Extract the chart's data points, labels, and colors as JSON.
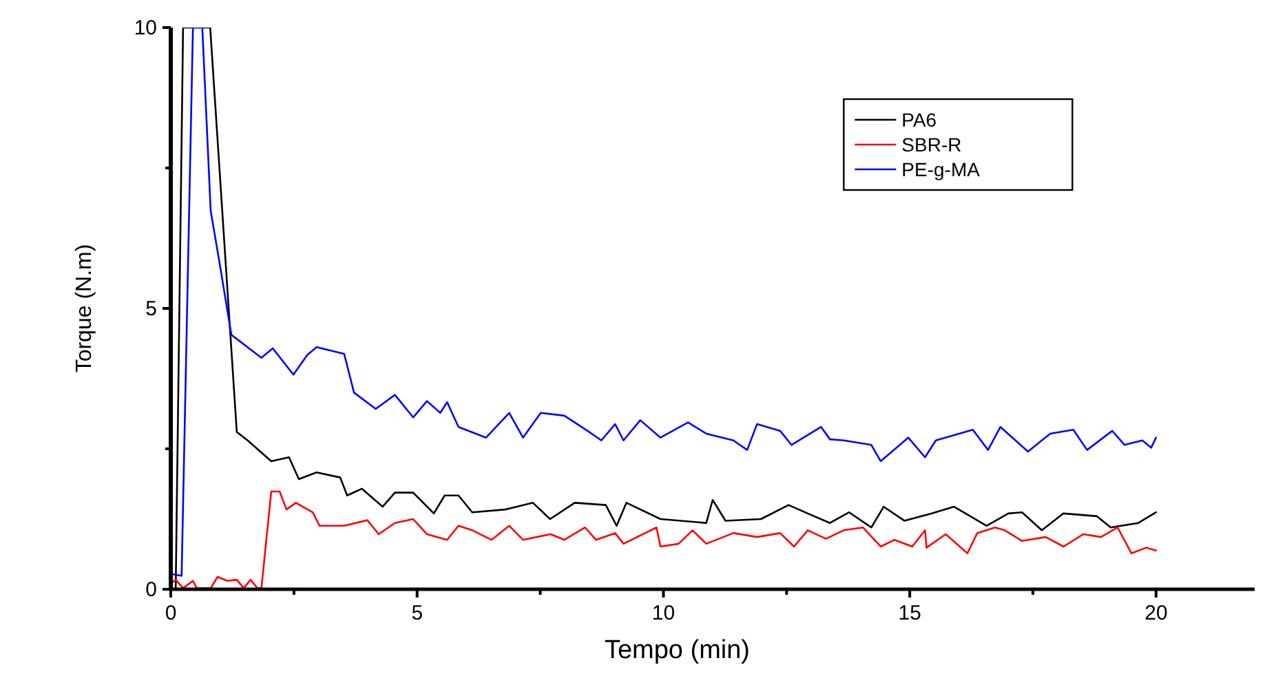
{
  "chart_data": {
    "type": "line",
    "xlabel": "Tempo (min)",
    "ylabel": "Torque (N.m)",
    "xlim": [
      0,
      22
    ],
    "ylim": [
      0,
      10
    ],
    "xticks": [
      0,
      {
        "value": 2.5,
        "label": null
      },
      5,
      {
        "value": 7.5,
        "label": null
      },
      10,
      {
        "value": 12.5,
        "label": null
      },
      15,
      {
        "value": 17.5,
        "label": null
      },
      20
    ],
    "yticks": [
      0,
      {
        "value": 2.5,
        "label": null
      },
      5,
      {
        "value": 7.5,
        "label": null
      },
      10
    ],
    "grid": false,
    "legend": "top right",
    "marker": "none",
    "line_style": "solid",
    "series": [
      {
        "name": "PA6",
        "color": "#000000",
        "x": [
          0.1,
          0.25,
          0.8,
          1.34,
          1.56,
          2.04,
          2.4,
          2.6,
          2.96,
          3.44,
          3.58,
          3.88,
          4.3,
          4.55,
          4.92,
          5.34,
          5.56,
          5.84,
          6.12,
          6.79,
          7.35,
          7.7,
          8.2,
          8.83,
          9.05,
          9.25,
          9.94,
          10.87,
          11.0,
          11.26,
          11.98,
          12.54,
          12.93,
          13.38,
          13.77,
          14.22,
          14.47,
          14.89,
          15.45,
          15.9,
          16.56,
          17.0,
          17.28,
          17.68,
          18.12,
          18.8,
          19.08,
          19.64,
          20.0
        ],
        "values": [
          0,
          10,
          10,
          2.8,
          2.65,
          2.28,
          2.35,
          1.96,
          2.08,
          1.99,
          1.67,
          1.79,
          1.47,
          1.72,
          1.72,
          1.35,
          1.67,
          1.67,
          1.37,
          1.42,
          1.54,
          1.25,
          1.54,
          1.5,
          1.13,
          1.54,
          1.25,
          1.18,
          1.59,
          1.22,
          1.25,
          1.5,
          1.35,
          1.18,
          1.37,
          1.1,
          1.47,
          1.22,
          1.35,
          1.47,
          1.13,
          1.35,
          1.37,
          1.05,
          1.35,
          1.3,
          1.1,
          1.18,
          1.37
        ]
      },
      {
        "name": "SBR-R",
        "color": "#ff0000",
        "x": [
          0.03,
          0.1,
          0.25,
          0.45,
          0.53,
          0.81,
          0.95,
          1.15,
          1.34,
          1.48,
          1.62,
          1.76,
          1.84,
          2.04,
          2.21,
          2.35,
          2.54,
          2.88,
          3.02,
          3.52,
          3.99,
          4.22,
          4.55,
          4.92,
          5.2,
          5.61,
          5.84,
          6.12,
          6.51,
          6.87,
          7.15,
          7.71,
          7.99,
          8.41,
          8.63,
          9.02,
          9.19,
          9.86,
          9.94,
          10.31,
          10.59,
          10.87,
          11.42,
          11.9,
          12.37,
          12.65,
          12.93,
          13.3,
          13.66,
          14.05,
          14.41,
          14.69,
          15.05,
          15.31,
          15.34,
          15.73,
          16.17,
          16.37,
          16.73,
          16.93,
          17.28,
          17.76,
          18.12,
          18.52,
          18.88,
          19.22,
          19.5,
          19.8,
          20.0
        ],
        "values": [
          0.12,
          0.17,
          0.02,
          0.15,
          0.02,
          0.02,
          0.22,
          0.15,
          0.17,
          0.02,
          0.17,
          0.02,
          0.02,
          1.74,
          1.74,
          1.42,
          1.54,
          1.37,
          1.13,
          1.13,
          1.23,
          0.98,
          1.18,
          1.25,
          0.98,
          0.88,
          1.13,
          1.05,
          0.88,
          1.13,
          0.88,
          0.98,
          0.88,
          1.1,
          0.88,
          1.0,
          0.81,
          1.1,
          0.76,
          0.81,
          1.05,
          0.81,
          1.0,
          0.93,
          1.0,
          0.76,
          1.05,
          0.9,
          1.05,
          1.1,
          0.76,
          0.88,
          0.76,
          1.05,
          0.74,
          0.98,
          0.64,
          1.0,
          1.1,
          1.05,
          0.86,
          0.93,
          0.76,
          0.98,
          0.93,
          1.1,
          0.64,
          0.74,
          0.69
        ]
      },
      {
        "name": "PE-g-MA",
        "color": "#0000ff",
        "x": [
          0.03,
          0.22,
          0.45,
          0.64,
          0.81,
          1.0,
          1.23,
          1.84,
          2.07,
          2.49,
          2.77,
          2.96,
          3.52,
          3.72,
          4.16,
          4.55,
          4.92,
          5.2,
          5.47,
          5.61,
          5.84,
          6.4,
          6.87,
          7.15,
          7.51,
          7.99,
          8.46,
          8.74,
          9.02,
          9.19,
          9.53,
          9.94,
          10.5,
          10.87,
          11.42,
          11.7,
          11.9,
          12.37,
          12.6,
          13.2,
          13.38,
          13.66,
          14.22,
          14.41,
          14.97,
          15.31,
          15.53,
          16.28,
          16.59,
          16.84,
          17.4,
          17.85,
          18.32,
          18.6,
          19.11,
          19.36,
          19.72,
          19.9,
          20.0
        ],
        "values": [
          0.27,
          0.24,
          10,
          10,
          6.74,
          5.76,
          4.53,
          4.12,
          4.29,
          3.82,
          4.17,
          4.31,
          4.19,
          3.5,
          3.21,
          3.46,
          3.06,
          3.35,
          3.14,
          3.33,
          2.89,
          2.7,
          3.14,
          2.7,
          3.14,
          3.09,
          2.82,
          2.65,
          2.94,
          2.65,
          3.01,
          2.7,
          2.97,
          2.77,
          2.65,
          2.48,
          2.94,
          2.82,
          2.57,
          2.89,
          2.67,
          2.65,
          2.57,
          2.28,
          2.7,
          2.35,
          2.65,
          2.84,
          2.48,
          2.89,
          2.45,
          2.77,
          2.84,
          2.48,
          2.82,
          2.57,
          2.65,
          2.52,
          2.7
        ]
      }
    ]
  }
}
